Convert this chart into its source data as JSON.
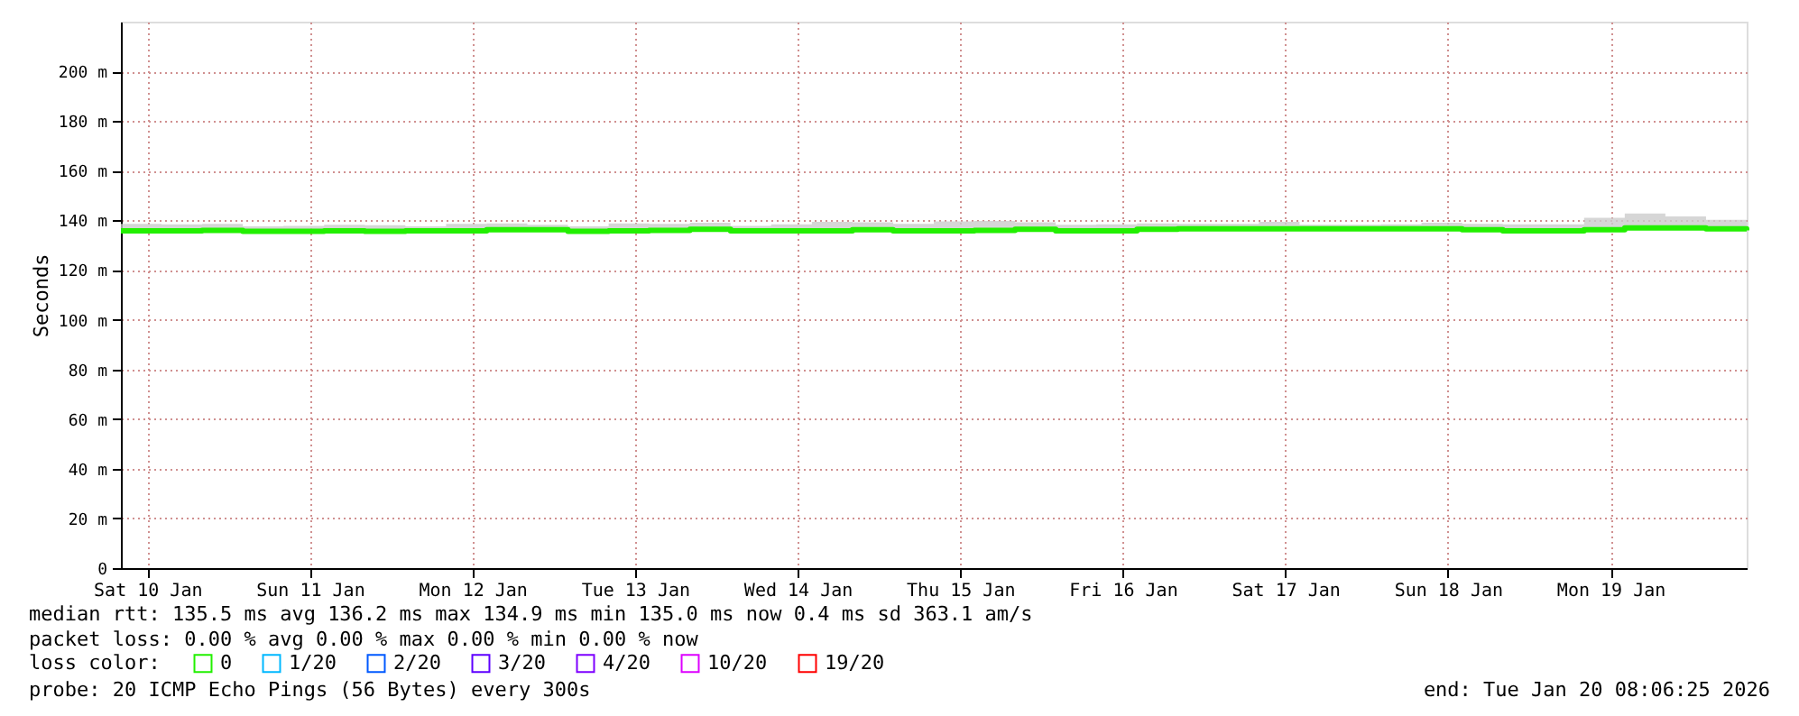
{
  "chart_data": {
    "type": "step",
    "ylabel": "Seconds",
    "ylim": [
      0,
      220
    ],
    "yticks": [
      {
        "value": 0,
        "label": "0"
      },
      {
        "value": 20,
        "label": "20 m"
      },
      {
        "value": 40,
        "label": "40 m"
      },
      {
        "value": 60,
        "label": "60 m"
      },
      {
        "value": 80,
        "label": "80 m"
      },
      {
        "value": 100,
        "label": "100 m"
      },
      {
        "value": 120,
        "label": "120 m"
      },
      {
        "value": 140,
        "label": "140 m"
      },
      {
        "value": 160,
        "label": "160 m"
      },
      {
        "value": 180,
        "label": "180 m"
      },
      {
        "value": 200,
        "label": "200 m"
      }
    ],
    "xlim": [
      "2026-01-10T08:06",
      "2026-01-20T08:06"
    ],
    "xticks": [
      {
        "value": "2026-01-10T12:00",
        "label": "Sat 10 Jan"
      },
      {
        "value": "2026-01-11T12:00",
        "label": "Sun 11 Jan"
      },
      {
        "value": "2026-01-12T12:00",
        "label": "Mon 12 Jan"
      },
      {
        "value": "2026-01-13T12:00",
        "label": "Tue 13 Jan"
      },
      {
        "value": "2026-01-14T12:00",
        "label": "Wed 14 Jan"
      },
      {
        "value": "2026-01-15T12:00",
        "label": "Thu 15 Jan"
      },
      {
        "value": "2026-01-16T12:00",
        "label": "Fri 16 Jan"
      },
      {
        "value": "2026-01-17T12:00",
        "label": "Sat 17 Jan"
      },
      {
        "value": "2026-01-18T12:00",
        "label": "Sun 18 Jan"
      },
      {
        "value": "2026-01-19T12:00",
        "label": "Mon 19 Jan"
      }
    ],
    "x": [
      "2026-01-10T08:06",
      "2026-01-10T14:06",
      "2026-01-10T20:06",
      "2026-01-11T02:06",
      "2026-01-11T08:06",
      "2026-01-11T14:06",
      "2026-01-11T20:06",
      "2026-01-12T02:06",
      "2026-01-12T08:06",
      "2026-01-12T14:06",
      "2026-01-12T20:06",
      "2026-01-13T02:06",
      "2026-01-13T08:06",
      "2026-01-13T14:06",
      "2026-01-13T20:06",
      "2026-01-14T02:06",
      "2026-01-14T08:06",
      "2026-01-14T14:06",
      "2026-01-14T20:06",
      "2026-01-15T02:06",
      "2026-01-15T08:06",
      "2026-01-15T14:06",
      "2026-01-15T20:06",
      "2026-01-16T02:06",
      "2026-01-16T08:06",
      "2026-01-16T14:06",
      "2026-01-16T20:06",
      "2026-01-17T02:06",
      "2026-01-17T08:06",
      "2026-01-17T14:06",
      "2026-01-17T20:06",
      "2026-01-18T02:06",
      "2026-01-18T08:06",
      "2026-01-18T14:06",
      "2026-01-18T20:06",
      "2026-01-19T02:06",
      "2026-01-19T08:06",
      "2026-01-19T14:06",
      "2026-01-19T20:06",
      "2026-01-20T02:06",
      "2026-01-20T08:06"
    ],
    "legend_title": "loss color:",
    "legend": "bottom",
    "grid": true,
    "series": [
      {
        "name": "0",
        "color": "#22f000",
        "values": [
          135.8,
          135.8,
          136.0,
          135.6,
          135.6,
          135.8,
          135.6,
          135.8,
          135.8,
          136.2,
          136.2,
          135.6,
          135.8,
          136.0,
          136.4,
          135.8,
          135.8,
          135.8,
          136.2,
          135.8,
          135.8,
          136.0,
          136.4,
          135.8,
          135.8,
          136.4,
          136.6,
          136.6,
          136.6,
          136.6,
          136.6,
          136.6,
          136.6,
          136.2,
          135.8,
          135.8,
          136.2,
          137.0,
          137.0,
          136.6,
          136.0
        ],
        "lower": [
          135.0,
          135.0,
          135.2,
          135.0,
          135.0,
          135.0,
          135.0,
          135.0,
          135.0,
          135.4,
          135.4,
          135.0,
          135.0,
          135.2,
          135.6,
          135.0,
          135.0,
          135.0,
          135.4,
          135.0,
          135.0,
          135.2,
          135.6,
          135.0,
          135.0,
          135.6,
          135.8,
          135.8,
          135.8,
          135.8,
          135.8,
          135.8,
          135.8,
          135.4,
          135.0,
          135.0,
          135.4,
          136.2,
          136.2,
          135.8,
          135.2
        ],
        "upper": [
          138.6,
          138.4,
          138.6,
          137.6,
          137.8,
          138.2,
          138.0,
          137.6,
          138.6,
          138.8,
          138.2,
          137.6,
          138.8,
          138.6,
          139.0,
          137.8,
          138.4,
          139.4,
          139.2,
          138.6,
          139.6,
          139.8,
          139.2,
          138.2,
          138.4,
          138.8,
          138.6,
          138.6,
          139.4,
          138.2,
          138.2,
          138.4,
          139.0,
          138.6,
          138.4,
          138.4,
          141.0,
          142.8,
          141.6,
          140.2,
          138.0
        ]
      },
      {
        "name": "1/20",
        "color": "#00b8ff",
        "values": [
          null,
          null,
          null,
          null,
          null,
          null,
          null,
          null,
          null,
          null,
          null,
          null,
          null,
          null,
          null,
          null,
          null,
          null,
          null,
          null,
          null,
          null,
          null,
          null,
          null,
          null,
          null,
          null,
          null,
          null,
          null,
          null,
          null,
          null,
          null,
          null,
          null,
          null,
          null,
          null,
          null
        ]
      },
      {
        "name": "2/20",
        "color": "#0059ff",
        "values": [
          null,
          null,
          null,
          null,
          null,
          null,
          null,
          null,
          null,
          null,
          null,
          null,
          null,
          null,
          null,
          null,
          null,
          null,
          null,
          null,
          null,
          null,
          null,
          null,
          null,
          null,
          null,
          null,
          null,
          null,
          null,
          null,
          null,
          null,
          null,
          null,
          null,
          null,
          null,
          null,
          null
        ]
      },
      {
        "name": "3/20",
        "color": "#5e00ff",
        "values": [
          null,
          null,
          null,
          null,
          null,
          null,
          null,
          null,
          null,
          null,
          null,
          null,
          null,
          null,
          null,
          null,
          null,
          null,
          null,
          null,
          null,
          null,
          null,
          null,
          null,
          null,
          null,
          null,
          null,
          null,
          null,
          null,
          null,
          null,
          null,
          null,
          null,
          null,
          null,
          null,
          null
        ]
      },
      {
        "name": "4/20",
        "color": "#7e00ff",
        "values": [
          null,
          null,
          null,
          null,
          null,
          null,
          null,
          null,
          null,
          null,
          null,
          null,
          null,
          null,
          null,
          null,
          null,
          null,
          null,
          null,
          null,
          null,
          null,
          null,
          null,
          null,
          null,
          null,
          null,
          null,
          null,
          null,
          null,
          null,
          null,
          null,
          null,
          null,
          null,
          null,
          null
        ]
      },
      {
        "name": "10/20",
        "color": "#dd00ff",
        "values": [
          null,
          null,
          null,
          null,
          null,
          null,
          null,
          null,
          null,
          null,
          null,
          null,
          null,
          null,
          null,
          null,
          null,
          null,
          null,
          null,
          null,
          null,
          null,
          null,
          null,
          null,
          null,
          null,
          null,
          null,
          null,
          null,
          null,
          null,
          null,
          null,
          null,
          null,
          null,
          null,
          null
        ]
      },
      {
        "name": "19/20",
        "color": "#ff0000",
        "values": [
          null,
          null,
          null,
          null,
          null,
          null,
          null,
          null,
          null,
          null,
          null,
          null,
          null,
          null,
          null,
          null,
          null,
          null,
          null,
          null,
          null,
          null,
          null,
          null,
          null,
          null,
          null,
          null,
          null,
          null,
          null,
          null,
          null,
          null,
          null,
          null,
          null,
          null,
          null,
          null,
          null
        ]
      }
    ],
    "annotations": [
      "median rtt:  135.5 ms avg  136.2 ms max  134.9 ms min  135.0 ms now  0.4 ms sd  363.1   am/s",
      "packet loss: 0.00 % avg  0.00 % max  0.00 % min  0.00 % now",
      "probe:       20 ICMP Echo Pings (56 Bytes) every 300s",
      "end: Tue Jan 20 08:06:25 2026"
    ]
  }
}
